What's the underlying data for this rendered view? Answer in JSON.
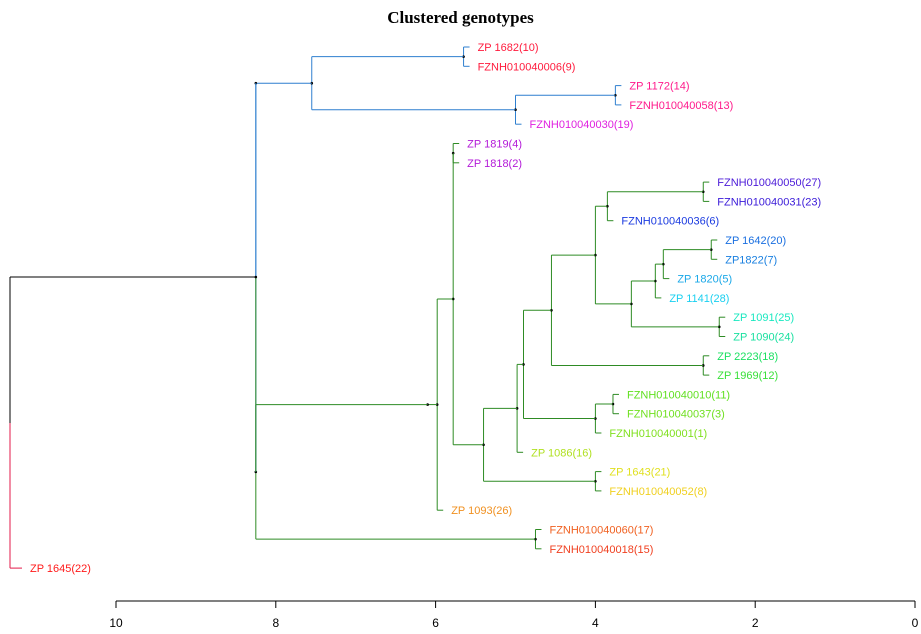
{
  "title": "Clustered genotypes",
  "axis": {
    "ticks": [
      "10",
      "8",
      "6",
      "4",
      "2",
      "0"
    ],
    "range": [
      10,
      0
    ]
  },
  "colors": {
    "root": "#000000",
    "blue_clade": "#2e7fcf",
    "green_clade": "#2e8b24",
    "red_clade": "#e31a4a"
  },
  "leaves": [
    {
      "label": "ZP 1682(10)",
      "color": "#ff1a3c"
    },
    {
      "label": "FZNH010040006(9)",
      "color": "#ff1a3c"
    },
    {
      "label": "ZP 1172(14)",
      "color": "#ff1a8c"
    },
    {
      "label": "FZNH010040058(13)",
      "color": "#ff1a8c"
    },
    {
      "label": "FZNH010040030(19)",
      "color": "#e020e0"
    },
    {
      "label": "ZP 1819(4)",
      "color": "#b31ad8"
    },
    {
      "label": "ZP 1818(2)",
      "color": "#b31ad8"
    },
    {
      "label": "FZNH010040050(27)",
      "color": "#4b1ad8"
    },
    {
      "label": "FZNH010040031(23)",
      "color": "#3a1ad8"
    },
    {
      "label": "FZNH010040036(6)",
      "color": "#1a3ae0"
    },
    {
      "label": "ZP 1642(20)",
      "color": "#1a6fe0"
    },
    {
      "label": "ZP1822(7)",
      "color": "#1a80e0"
    },
    {
      "label": "ZP 1820(5)",
      "color": "#1aa8e8"
    },
    {
      "label": "ZP 1141(28)",
      "color": "#1ad0f0"
    },
    {
      "label": "ZP 1091(25)",
      "color": "#1ae8c0"
    },
    {
      "label": "ZP 1090(24)",
      "color": "#1ae0a0"
    },
    {
      "label": "ZP 2223(18)",
      "color": "#1ae060"
    },
    {
      "label": "ZP 1969(12)",
      "color": "#3ae03a"
    },
    {
      "label": "FZNH010040010(11)",
      "color": "#60e020"
    },
    {
      "label": "FZNH010040037(3)",
      "color": "#70e020"
    },
    {
      "label": "FZNH010040001(1)",
      "color": "#80e020"
    },
    {
      "label": "ZP 1086(16)",
      "color": "#b0e020"
    },
    {
      "label": "ZP 1643(21)",
      "color": "#e0e020"
    },
    {
      "label": "FZNH010040052(8)",
      "color": "#f0d020"
    },
    {
      "label": "ZP 1093(26)",
      "color": "#f09020"
    },
    {
      "label": "FZNH010040060(17)",
      "color": "#f06020"
    },
    {
      "label": "FZNH010040018(15)",
      "color": "#f04020"
    },
    {
      "label": "ZP 1645(22)",
      "color": "#ff1a1a"
    }
  ],
  "tree": {
    "h": 11.3,
    "c": "root",
    "k": [
      {
        "h": 8.25,
        "c": "blue_clade",
        "k": [
          {
            "h": 7.55,
            "c": "blue_clade",
            "k": [
              {
                "h": 5.65,
                "c": "blue_clade",
                "k": [
                  {
                    "l": 0
                  },
                  {
                    "l": 1
                  }
                ]
              },
              {
                "h": 5.0,
                "c": "blue_clade",
                "k": [
                  {
                    "h": 3.75,
                    "c": "blue_clade",
                    "k": [
                      {
                        "l": 2
                      },
                      {
                        "l": 3
                      }
                    ]
                  },
                  {
                    "l": 4
                  }
                ]
              }
            ]
          }
        ]
      },
      {
        "h": 8.25,
        "c": "green_clade",
        "k": [
          {
            "h": 6.1,
            "c": "green_clade",
            "k": [
              {
                "h": 5.98,
                "c": "green_clade",
                "k": [
                  {
                    "h": 5.78,
                    "c": "green_clade",
                    "k": [
                      {
                        "h": 5.78,
                        "c": "green_clade",
                        "k": [
                          {
                            "l": 5
                          },
                          {
                            "l": 6
                          }
                        ]
                      },
                      {
                        "h": 5.4,
                        "c": "green_clade",
                        "k": [
                          {
                            "h": 4.98,
                            "c": "green_clade",
                            "k": [
                              {
                                "h": 4.9,
                                "c": "green_clade",
                                "k": [
                                  {
                                    "h": 4.55,
                                    "c": "green_clade",
                                    "k": [
                                      {
                                        "h": 4.0,
                                        "c": "green_clade",
                                        "k": [
                                          {
                                            "h": 3.85,
                                            "c": "green_clade",
                                            "k": [
                                              {
                                                "h": 2.65,
                                                "c": "green_clade",
                                                "k": [
                                                  {
                                                    "l": 7
                                                  },
                                                  {
                                                    "l": 8
                                                  }
                                                ]
                                              },
                                              {
                                                "l": 9
                                              }
                                            ]
                                          },
                                          {
                                            "h": 3.55,
                                            "c": "green_clade",
                                            "k": [
                                              {
                                                "h": 3.25,
                                                "c": "green_clade",
                                                "k": [
                                                  {
                                                    "h": 3.15,
                                                    "c": "green_clade",
                                                    "k": [
                                                      {
                                                        "h": 2.55,
                                                        "c": "green_clade",
                                                        "k": [
                                                          {
                                                            "l": 10
                                                          },
                                                          {
                                                            "l": 11
                                                          }
                                                        ]
                                                      },
                                                      {
                                                        "l": 12
                                                      }
                                                    ]
                                                  },
                                                  {
                                                    "l": 13
                                                  }
                                                ]
                                              },
                                              {
                                                "h": 2.45,
                                                "c": "green_clade",
                                                "k": [
                                                  {
                                                    "l": 14
                                                  },
                                                  {
                                                    "l": 15
                                                  }
                                                ]
                                              }
                                            ]
                                          }
                                        ]
                                      },
                                      {
                                        "h": 2.65,
                                        "c": "green_clade",
                                        "k": [
                                          {
                                            "l": 16
                                          },
                                          {
                                            "l": 17
                                          }
                                        ]
                                      }
                                    ]
                                  },
                                  {
                                    "h": 4.0,
                                    "c": "green_clade",
                                    "k": [
                                      {
                                        "h": 3.78,
                                        "c": "green_clade",
                                        "k": [
                                          {
                                            "l": 18
                                          },
                                          {
                                            "l": 19
                                          }
                                        ]
                                      },
                                      {
                                        "l": 20
                                      }
                                    ]
                                  }
                                ]
                              },
                              {
                                "l": 21
                              }
                            ]
                          },
                          {
                            "h": 4.0,
                            "c": "green_clade",
                            "k": [
                              {
                                "l": 22
                              },
                              {
                                "l": 23
                              }
                            ]
                          }
                        ]
                      }
                    ]
                  },
                  {
                    "l": 24
                  }
                ]
              }
            ]
          },
          {
            "h": 4.75,
            "c": "green_clade",
            "k": [
              {
                "l": 25
              },
              {
                "l": 26
              }
            ]
          }
        ]
      },
      {
        "l": 27,
        "c": "red_clade"
      }
    ]
  }
}
